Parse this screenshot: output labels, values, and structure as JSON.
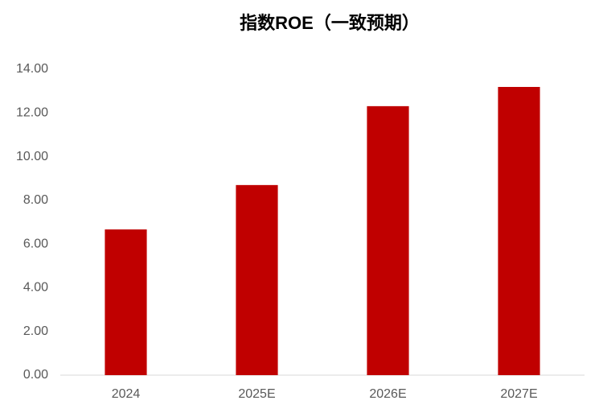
{
  "chart_data": {
    "type": "bar",
    "title": "指数ROE（一致预期）",
    "categories": [
      "2024",
      "2025E",
      "2026E",
      "2027E"
    ],
    "values": [
      6.67,
      8.7,
      12.31,
      13.19
    ],
    "color": "#c00000",
    "ylim": [
      0,
      14
    ],
    "yticks": [
      {
        "value": 0,
        "label": "0.00"
      },
      {
        "value": 2,
        "label": "2.00"
      },
      {
        "value": 4,
        "label": "4.00"
      },
      {
        "value": 6,
        "label": "6.00"
      },
      {
        "value": 8,
        "label": "8.00"
      },
      {
        "value": 10,
        "label": "10.00"
      },
      {
        "value": 12,
        "label": "12.00"
      },
      {
        "value": 14,
        "label": "14.00"
      }
    ],
    "grid": false
  }
}
